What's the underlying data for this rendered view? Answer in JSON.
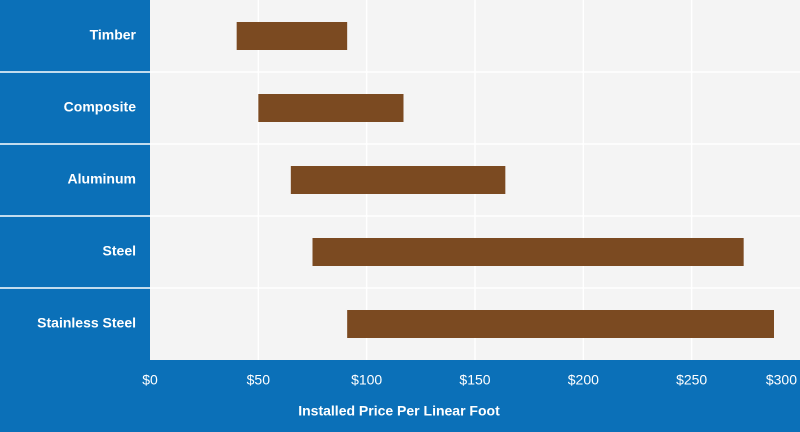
{
  "chart_data": {
    "type": "bar",
    "orientation": "horizontal",
    "categories": [
      "Timber",
      "Composite",
      "Aluminum",
      "Steel",
      "Stainless Steel"
    ],
    "ranges": [
      [
        40,
        91
      ],
      [
        50,
        117
      ],
      [
        65,
        164
      ],
      [
        75,
        274
      ],
      [
        91,
        288
      ]
    ],
    "xlabel": "Installed Price Per Linear Foot",
    "ylabel": "",
    "xlim": [
      0,
      300
    ],
    "xticks": [
      "$0",
      "$50",
      "$100",
      "$150",
      "$200",
      "$250",
      "$300"
    ],
    "grid": true,
    "legend": "none"
  },
  "colors": {
    "label_panel": "#0b70b8",
    "plot_background": "#f4f4f4",
    "grid": "#ffffff",
    "bar": "#7b4a21",
    "text_light": "#ffffff"
  }
}
